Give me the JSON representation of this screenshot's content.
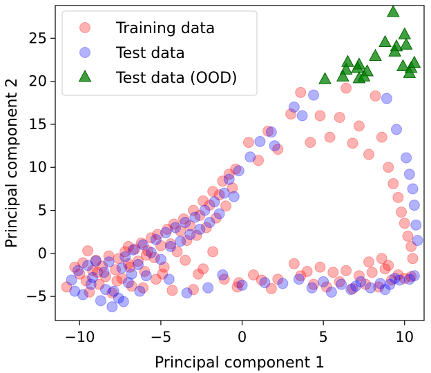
{
  "chart_data": {
    "type": "scatter",
    "title": "",
    "xlabel": "Principal component 1",
    "ylabel": "Principal component 2",
    "xlim": [
      -11.5,
      11.2
    ],
    "ylim": [
      -7.8,
      28.8
    ],
    "xticks": [
      -10,
      -5,
      0,
      5,
      10
    ],
    "xtick_labels": [
      "−10",
      "−5",
      "0",
      "5",
      "10"
    ],
    "yticks": [
      -5,
      0,
      5,
      10,
      15,
      20,
      25
    ],
    "ytick_labels": [
      "−5",
      "0",
      "5",
      "10",
      "15",
      "20",
      "25"
    ],
    "grid": false,
    "legend_position": "top-left",
    "series": [
      {
        "name": "Training data",
        "marker": "circle",
        "color": "#ff0000",
        "alpha": 0.3,
        "points": [
          [
            -10.8,
            -3.9
          ],
          [
            -10.3,
            -1.6
          ],
          [
            -10.0,
            -2.4
          ],
          [
            -9.8,
            -1.1
          ],
          [
            -9.6,
            -3.2
          ],
          [
            -9.4,
            -4.5
          ],
          [
            -9.2,
            -2.0
          ],
          [
            -9.0,
            -0.8
          ],
          [
            -8.8,
            -3.6
          ],
          [
            -8.6,
            -1.5
          ],
          [
            -8.4,
            -2.7
          ],
          [
            -8.2,
            -0.3
          ],
          [
            -8.0,
            -4.6
          ],
          [
            -7.8,
            -1.9
          ],
          [
            -7.6,
            -0.6
          ],
          [
            -7.4,
            -2.9
          ],
          [
            -7.2,
            0.2
          ],
          [
            -7.0,
            -1.2
          ],
          [
            -6.8,
            -3.8
          ],
          [
            -6.6,
            0.5
          ],
          [
            -6.4,
            -0.9
          ],
          [
            -6.2,
            1.2
          ],
          [
            -6.0,
            -2.1
          ],
          [
            -5.8,
            0.3
          ],
          [
            -5.6,
            1.8
          ],
          [
            -5.4,
            -0.5
          ],
          [
            -5.2,
            2.2
          ],
          [
            -5.0,
            0.9
          ],
          [
            -4.8,
            -1.6
          ],
          [
            -4.6,
            2.8
          ],
          [
            -4.4,
            1.1
          ],
          [
            -4.2,
            3.4
          ],
          [
            -4.0,
            0.2
          ],
          [
            -3.8,
            2.6
          ],
          [
            -3.6,
            4.0
          ],
          [
            -3.4,
            1.5
          ],
          [
            -3.2,
            3.2
          ],
          [
            -3.0,
            5.0
          ],
          [
            -2.8,
            2.1
          ],
          [
            -2.6,
            4.4
          ],
          [
            -2.4,
            6.1
          ],
          [
            -2.2,
            3.0
          ],
          [
            -2.0,
            5.6
          ],
          [
            -1.8,
            7.2
          ],
          [
            -1.6,
            4.1
          ],
          [
            -1.4,
            6.8
          ],
          [
            -1.2,
            8.4
          ],
          [
            -1.0,
            5.5
          ],
          [
            -0.8,
            9.2
          ],
          [
            -0.6,
            7.6
          ],
          [
            -0.4,
            9.8
          ],
          [
            0.4,
            12.9
          ],
          [
            1.0,
            10.8
          ],
          [
            1.6,
            14.2
          ],
          [
            2.2,
            12.1
          ],
          [
            3.0,
            16.2
          ],
          [
            3.6,
            18.7
          ],
          [
            4.2,
            12.9
          ],
          [
            4.8,
            16.0
          ],
          [
            5.4,
            13.5
          ],
          [
            6.0,
            15.8
          ],
          [
            6.4,
            19.2
          ],
          [
            6.8,
            12.8
          ],
          [
            7.2,
            14.8
          ],
          [
            7.8,
            11.5
          ],
          [
            8.2,
            18.3
          ],
          [
            8.6,
            13.5
          ],
          [
            9.0,
            10.0
          ],
          [
            9.3,
            8.1
          ],
          [
            9.6,
            6.5
          ],
          [
            9.8,
            4.8
          ],
          [
            10.0,
            3.5
          ],
          [
            10.2,
            2.0
          ],
          [
            10.4,
            0.8
          ],
          [
            10.5,
            -0.6
          ],
          [
            -8.9,
            -2.2
          ],
          [
            -7.7,
            -3.2
          ],
          [
            -6.9,
            -1.6
          ],
          [
            -5.9,
            -0.2
          ],
          [
            -4.9,
            -2.4
          ],
          [
            -4.3,
            -4.3
          ],
          [
            -3.5,
            -0.8
          ],
          [
            -2.7,
            -2.4
          ],
          [
            -1.8,
            0.2
          ],
          [
            -1.1,
            -3.0
          ],
          [
            -0.2,
            -3.4
          ],
          [
            1.2,
            -3.1
          ],
          [
            2.2,
            -3.0
          ],
          [
            3.2,
            -1.2
          ],
          [
            3.6,
            -2.6
          ],
          [
            4.0,
            -2.1
          ],
          [
            4.4,
            -3.6
          ],
          [
            4.8,
            -1.6
          ],
          [
            5.2,
            -3.9
          ],
          [
            5.6,
            -2.2
          ],
          [
            6.0,
            -3.3
          ],
          [
            6.4,
            -2.0
          ],
          [
            6.8,
            -4.1
          ],
          [
            7.2,
            -2.6
          ],
          [
            7.6,
            -3.6
          ],
          [
            8.0,
            -2.2
          ],
          [
            8.4,
            -3.9
          ],
          [
            8.8,
            -1.8
          ],
          [
            9.2,
            -3.1
          ],
          [
            9.6,
            -2.5
          ],
          [
            10.0,
            -2.9
          ],
          [
            10.4,
            -2.7
          ],
          [
            -3.0,
            -4.2
          ],
          [
            -2.4,
            -1.8
          ],
          [
            -5.3,
            -3.0
          ],
          [
            -6.1,
            -4.0
          ],
          [
            -7.0,
            0.8
          ],
          [
            -9.5,
            0.3
          ],
          [
            8.6,
            -0.6
          ],
          [
            9.0,
            -1.4
          ],
          [
            7.8,
            -1.0
          ],
          [
            -0.3,
            -3.9
          ],
          [
            1.8,
            -4.1
          ],
          [
            0.7,
            -2.5
          ]
        ]
      },
      {
        "name": "Test data",
        "marker": "circle",
        "color": "#0000ff",
        "alpha": 0.3,
        "points": [
          [
            -10.5,
            -3.1
          ],
          [
            -10.1,
            -2.0
          ],
          [
            -9.8,
            -4.8
          ],
          [
            -9.5,
            -1.4
          ],
          [
            -9.2,
            -2.8
          ],
          [
            -9.0,
            -0.9
          ],
          [
            -8.7,
            -5.5
          ],
          [
            -8.5,
            -2.2
          ],
          [
            -8.2,
            -1.0
          ],
          [
            -7.9,
            -4.4
          ],
          [
            -7.6,
            -5.2
          ],
          [
            -7.4,
            -1.7
          ],
          [
            -7.2,
            -0.4
          ],
          [
            -7.0,
            -3.4
          ],
          [
            -6.7,
            0.4
          ],
          [
            -6.4,
            -1.3
          ],
          [
            -6.1,
            1.0
          ],
          [
            -5.9,
            -2.6
          ],
          [
            -5.6,
            0.1
          ],
          [
            -5.3,
            1.6
          ],
          [
            -5.0,
            -0.7
          ],
          [
            -4.7,
            2.4
          ],
          [
            -4.4,
            0.8
          ],
          [
            -4.1,
            3.0
          ],
          [
            -3.8,
            1.4
          ],
          [
            -3.5,
            3.6
          ],
          [
            -3.2,
            2.2
          ],
          [
            -2.9,
            4.2
          ],
          [
            -2.6,
            2.8
          ],
          [
            -2.3,
            5.0
          ],
          [
            -2.0,
            3.6
          ],
          [
            -1.7,
            6.0
          ],
          [
            -1.4,
            4.6
          ],
          [
            -1.1,
            7.0
          ],
          [
            -0.8,
            8.6
          ],
          [
            -0.5,
            6.6
          ],
          [
            -0.2,
            9.6
          ],
          [
            0.5,
            11.2
          ],
          [
            1.1,
            13.0
          ],
          [
            1.8,
            14.1
          ],
          [
            2.0,
            12.5
          ],
          [
            3.2,
            17.0
          ],
          [
            3.7,
            16.0
          ],
          [
            4.4,
            18.4
          ],
          [
            8.9,
            18.0
          ],
          [
            9.5,
            14.4
          ],
          [
            10.1,
            11.1
          ],
          [
            10.3,
            9.2
          ],
          [
            10.5,
            7.5
          ],
          [
            10.6,
            5.6
          ],
          [
            10.7,
            3.3
          ],
          [
            10.8,
            1.5
          ],
          [
            -6.3,
            -4.4
          ],
          [
            -2.1,
            -4.0
          ],
          [
            -1.2,
            -2.5
          ],
          [
            0.0,
            -3.7
          ],
          [
            1.4,
            -3.4
          ],
          [
            2.5,
            -3.5
          ],
          [
            3.5,
            -3.0
          ],
          [
            4.3,
            -4.0
          ],
          [
            5.0,
            -3.3
          ],
          [
            5.5,
            -4.5
          ],
          [
            6.1,
            -3.6
          ],
          [
            6.7,
            -4.2
          ],
          [
            7.3,
            -3.3
          ],
          [
            7.9,
            -4.0
          ],
          [
            8.5,
            -3.5
          ],
          [
            9.1,
            -3.6
          ],
          [
            9.7,
            -3.1
          ],
          [
            10.3,
            -3.0
          ],
          [
            10.6,
            -2.6
          ],
          [
            9.4,
            -2.9
          ],
          [
            8.8,
            -4.2
          ],
          [
            7.0,
            -3.8
          ],
          [
            -9.3,
            -3.6
          ],
          [
            -8.4,
            -4.2
          ],
          [
            -6.8,
            -2.4
          ],
          [
            -4.5,
            -3.0
          ],
          [
            -3.4,
            -4.6
          ],
          [
            -8.0,
            -6.2
          ],
          [
            -7.3,
            -5.6
          ],
          [
            -10.3,
            -4.4
          ]
        ]
      },
      {
        "name": "Test data (OOD)",
        "marker": "triangle",
        "color": "#008000",
        "alpha": 0.75,
        "points": [
          [
            9.3,
            28.1
          ],
          [
            10.0,
            25.5
          ],
          [
            8.8,
            24.6
          ],
          [
            9.5,
            24.1
          ],
          [
            10.1,
            24.3
          ],
          [
            8.2,
            23.0
          ],
          [
            9.9,
            21.8
          ],
          [
            10.4,
            21.6
          ],
          [
            10.6,
            22.2
          ],
          [
            6.5,
            22.3
          ],
          [
            6.4,
            21.4
          ],
          [
            7.2,
            22.0
          ],
          [
            7.7,
            21.2
          ],
          [
            7.1,
            21.6
          ],
          [
            6.2,
            20.6
          ],
          [
            7.2,
            20.4
          ],
          [
            5.1,
            20.3
          ],
          [
            7.5,
            20.6
          ],
          [
            9.4,
            23.5
          ],
          [
            10.3,
            21.0
          ]
        ]
      }
    ]
  }
}
